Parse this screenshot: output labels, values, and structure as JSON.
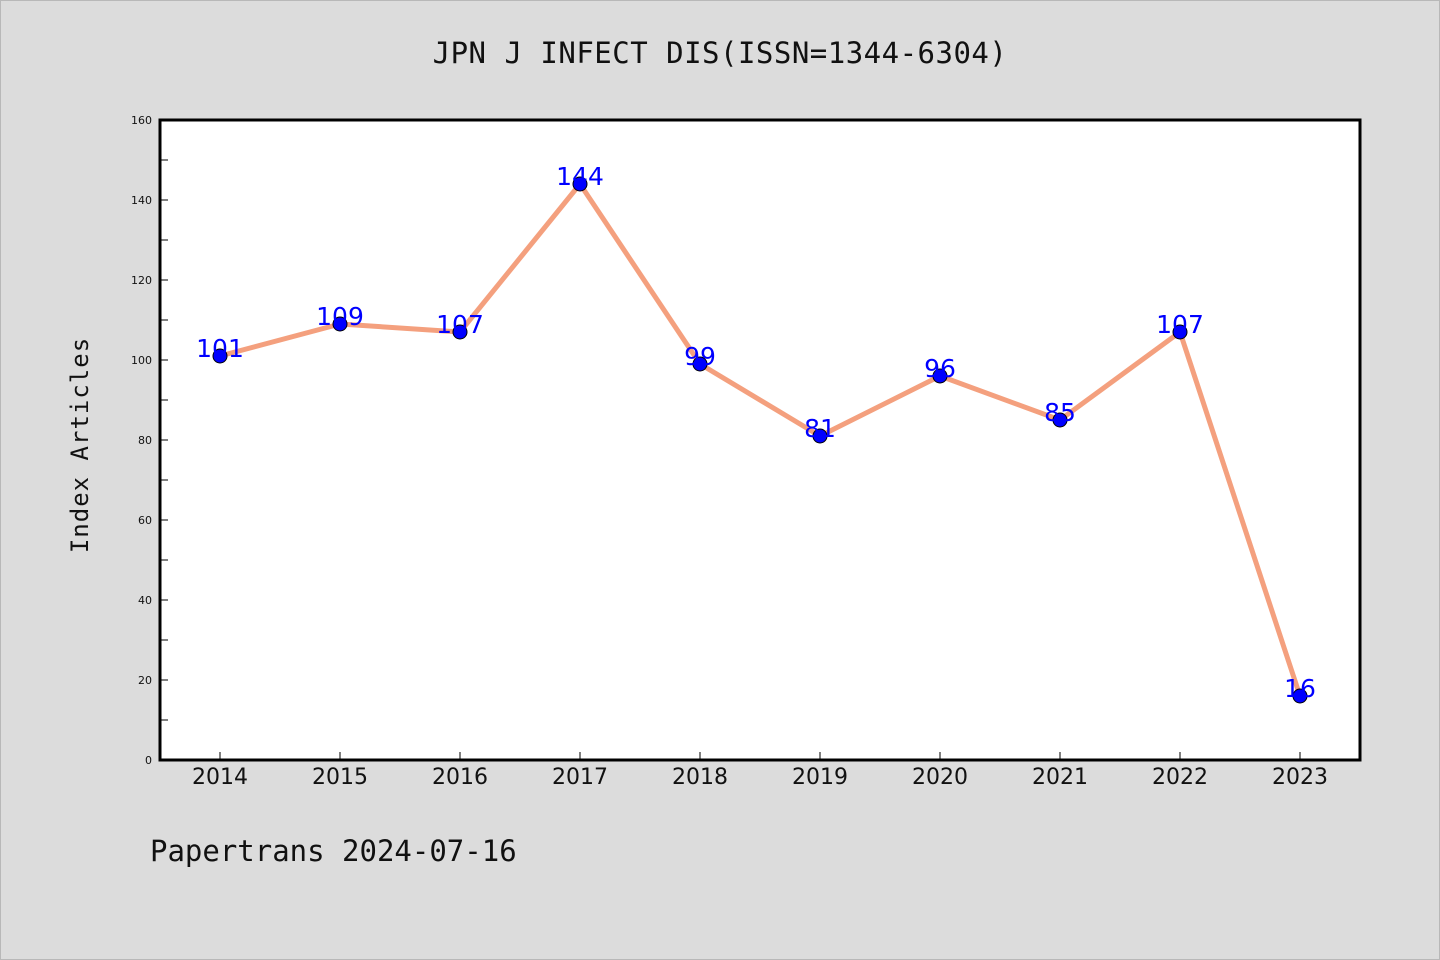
{
  "chart_data": {
    "type": "line",
    "title": "JPN J INFECT DIS(ISSN=1344-6304)",
    "ylabel": "Index Articles",
    "xlabel": "",
    "categories": [
      "2014",
      "2015",
      "2016",
      "2017",
      "2018",
      "2019",
      "2020",
      "2021",
      "2022",
      "2023"
    ],
    "values": [
      101,
      109,
      107,
      144,
      99,
      81,
      96,
      85,
      107,
      16
    ],
    "ylim": [
      0,
      160
    ],
    "yticks": [
      0,
      20,
      40,
      60,
      80,
      100,
      120,
      140,
      160
    ],
    "grid": false,
    "legend": "none",
    "line_color": "#f4a07e",
    "marker_color": "#0000ff",
    "label_color": "#0000ff"
  },
  "footer": {
    "text": "Papertrans 2024-07-16"
  }
}
